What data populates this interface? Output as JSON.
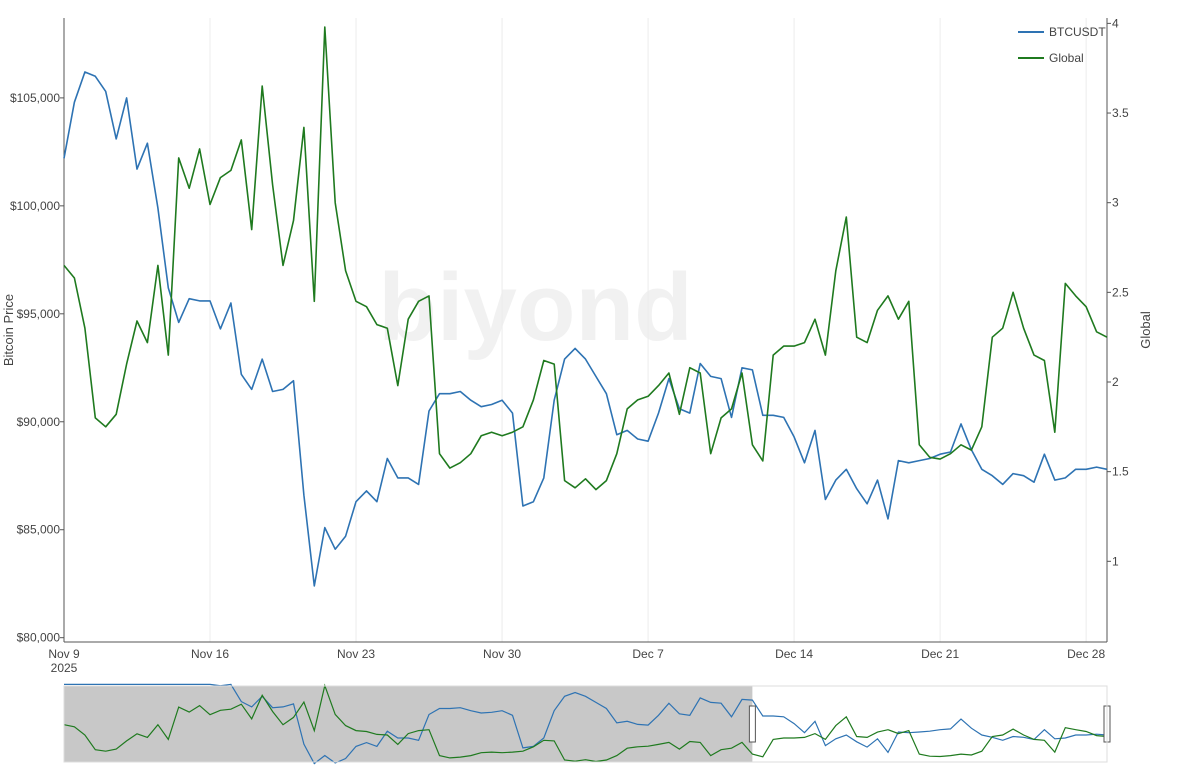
{
  "chart_data": {
    "type": "line",
    "watermark": "biyond",
    "x_axis": {
      "range": [
        "2025-11-09",
        "2025-12-29"
      ],
      "ticks": [
        {
          "date": "2025-11-09",
          "label": "Nov 9",
          "sublabel": "2025"
        },
        {
          "date": "2025-11-16",
          "label": "Nov 16"
        },
        {
          "date": "2025-11-23",
          "label": "Nov 23"
        },
        {
          "date": "2025-11-30",
          "label": "Nov 30"
        },
        {
          "date": "2025-12-07",
          "label": "Dec 7"
        },
        {
          "date": "2025-12-14",
          "label": "Dec 14"
        },
        {
          "date": "2025-12-21",
          "label": "Dec 21"
        },
        {
          "date": "2025-12-28",
          "label": "Dec 28"
        }
      ],
      "grid": true
    },
    "y_axis_left": {
      "title": "Bitcoin Price",
      "range": [
        79800,
        108700
      ],
      "ticks": [
        {
          "value": 80000,
          "label": "$80,000"
        },
        {
          "value": 85000,
          "label": "$85,000"
        },
        {
          "value": 90000,
          "label": "$90,000"
        },
        {
          "value": 95000,
          "label": "$95,000"
        },
        {
          "value": 100000,
          "label": "$100,000"
        },
        {
          "value": 105000,
          "label": "$105,000"
        }
      ]
    },
    "y_axis_right": {
      "title": "Global",
      "range": [
        0.55,
        4.03
      ],
      "ticks": [
        {
          "value": 1,
          "label": "1"
        },
        {
          "value": 1.5,
          "label": "1.5"
        },
        {
          "value": 2,
          "label": "2"
        },
        {
          "value": 2.5,
          "label": "2.5"
        },
        {
          "value": 3,
          "label": "3"
        },
        {
          "value": 3.5,
          "label": "3.5"
        },
        {
          "value": 4,
          "label": "4"
        }
      ]
    },
    "legend": {
      "placement": "top-right"
    },
    "series": [
      {
        "name": "BTCUSDT",
        "axis": "left",
        "color": "#2e73b3",
        "points": [
          [
            "2025-11-09T00:00",
            102200
          ],
          [
            "2025-11-09T12:00",
            104800
          ],
          [
            "2025-11-10T00:00",
            106200
          ],
          [
            "2025-11-10T12:00",
            106000
          ],
          [
            "2025-11-11T00:00",
            105300
          ],
          [
            "2025-11-11T12:00",
            103100
          ],
          [
            "2025-11-12T00:00",
            105000
          ],
          [
            "2025-11-12T12:00",
            101700
          ],
          [
            "2025-11-13T00:00",
            102900
          ],
          [
            "2025-11-13T12:00",
            99900
          ],
          [
            "2025-11-14T00:00",
            96200
          ],
          [
            "2025-11-14T12:00",
            94600
          ],
          [
            "2025-11-15T00:00",
            95700
          ],
          [
            "2025-11-15T12:00",
            95600
          ],
          [
            "2025-11-16T00:00",
            95600
          ],
          [
            "2025-11-16T12:00",
            94300
          ],
          [
            "2025-11-17T00:00",
            95500
          ],
          [
            "2025-11-17T12:00",
            92200
          ],
          [
            "2025-11-18T00:00",
            91500
          ],
          [
            "2025-11-18T12:00",
            92900
          ],
          [
            "2025-11-19T00:00",
            91400
          ],
          [
            "2025-11-19T12:00",
            91500
          ],
          [
            "2025-11-20T00:00",
            91900
          ],
          [
            "2025-11-20T12:00",
            86600
          ],
          [
            "2025-11-21T00:00",
            82400
          ],
          [
            "2025-11-21T12:00",
            85100
          ],
          [
            "2025-11-22T00:00",
            84100
          ],
          [
            "2025-11-22T12:00",
            84700
          ],
          [
            "2025-11-23T00:00",
            86300
          ],
          [
            "2025-11-23T12:00",
            86800
          ],
          [
            "2025-11-24T00:00",
            86300
          ],
          [
            "2025-11-24T12:00",
            88300
          ],
          [
            "2025-11-25T00:00",
            87400
          ],
          [
            "2025-11-25T12:00",
            87400
          ],
          [
            "2025-11-26T00:00",
            87100
          ],
          [
            "2025-11-26T12:00",
            90500
          ],
          [
            "2025-11-27T00:00",
            91300
          ],
          [
            "2025-11-27T12:00",
            91300
          ],
          [
            "2025-11-28T00:00",
            91400
          ],
          [
            "2025-11-28T12:00",
            91000
          ],
          [
            "2025-11-29T00:00",
            90700
          ],
          [
            "2025-11-29T12:00",
            90800
          ],
          [
            "2025-11-30T00:00",
            91000
          ],
          [
            "2025-11-30T12:00",
            90400
          ],
          [
            "2025-12-01T00:00",
            86100
          ],
          [
            "2025-12-01T12:00",
            86300
          ],
          [
            "2025-12-02T00:00",
            87400
          ],
          [
            "2025-12-02T12:00",
            91000
          ],
          [
            "2025-12-03T00:00",
            92900
          ],
          [
            "2025-12-03T12:00",
            93400
          ],
          [
            "2025-12-04T00:00",
            92900
          ],
          [
            "2025-12-04T12:00",
            92100
          ],
          [
            "2025-12-05T00:00",
            91300
          ],
          [
            "2025-12-05T12:00",
            89400
          ],
          [
            "2025-12-06T00:00",
            89600
          ],
          [
            "2025-12-06T12:00",
            89200
          ],
          [
            "2025-12-07T00:00",
            89100
          ],
          [
            "2025-12-07T12:00",
            90400
          ],
          [
            "2025-12-08T00:00",
            92000
          ],
          [
            "2025-12-08T12:00",
            90600
          ],
          [
            "2025-12-09T00:00",
            90400
          ],
          [
            "2025-12-09T12:00",
            92700
          ],
          [
            "2025-12-10T00:00",
            92100
          ],
          [
            "2025-12-10T12:00",
            92000
          ],
          [
            "2025-12-11T00:00",
            90200
          ],
          [
            "2025-12-11T12:00",
            92500
          ],
          [
            "2025-12-12T00:00",
            92400
          ],
          [
            "2025-12-12T12:00",
            90300
          ],
          [
            "2025-12-13T00:00",
            90300
          ],
          [
            "2025-12-13T12:00",
            90200
          ],
          [
            "2025-12-14T00:00",
            89300
          ],
          [
            "2025-12-14T12:00",
            88100
          ],
          [
            "2025-12-15T00:00",
            89600
          ],
          [
            "2025-12-15T12:00",
            86400
          ],
          [
            "2025-12-16T00:00",
            87300
          ],
          [
            "2025-12-16T12:00",
            87800
          ],
          [
            "2025-12-17T00:00",
            86900
          ],
          [
            "2025-12-17T12:00",
            86200
          ],
          [
            "2025-12-18T00:00",
            87300
          ],
          [
            "2025-12-18T12:00",
            85500
          ],
          [
            "2025-12-19T00:00",
            88200
          ],
          [
            "2025-12-19T12:00",
            88100
          ],
          [
            "2025-12-20T00:00",
            88200
          ],
          [
            "2025-12-20T12:00",
            88300
          ],
          [
            "2025-12-21T00:00",
            88500
          ],
          [
            "2025-12-21T12:00",
            88600
          ],
          [
            "2025-12-22T00:00",
            89900
          ],
          [
            "2025-12-22T12:00",
            88700
          ],
          [
            "2025-12-23T00:00",
            87800
          ],
          [
            "2025-12-23T12:00",
            87500
          ],
          [
            "2025-12-24T00:00",
            87100
          ],
          [
            "2025-12-24T12:00",
            87600
          ],
          [
            "2025-12-25T00:00",
            87500
          ],
          [
            "2025-12-25T12:00",
            87200
          ],
          [
            "2025-12-26T00:00",
            88500
          ],
          [
            "2025-12-26T12:00",
            87300
          ],
          [
            "2025-12-27T00:00",
            87400
          ],
          [
            "2025-12-27T12:00",
            87800
          ],
          [
            "2025-12-28T00:00",
            87800
          ],
          [
            "2025-12-28T12:00",
            87900
          ],
          [
            "2025-12-29T00:00",
            87800
          ]
        ]
      },
      {
        "name": "Global",
        "axis": "right",
        "color": "#1f7a1f",
        "points": [
          [
            "2025-11-09T00:00",
            2.65
          ],
          [
            "2025-11-09T12:00",
            2.58
          ],
          [
            "2025-11-10T00:00",
            2.3
          ],
          [
            "2025-11-10T12:00",
            1.8
          ],
          [
            "2025-11-11T00:00",
            1.75
          ],
          [
            "2025-11-11T12:00",
            1.82
          ],
          [
            "2025-11-12T00:00",
            2.1
          ],
          [
            "2025-11-12T12:00",
            2.34
          ],
          [
            "2025-11-13T00:00",
            2.22
          ],
          [
            "2025-11-13T12:00",
            2.65
          ],
          [
            "2025-11-14T00:00",
            2.15
          ],
          [
            "2025-11-14T12:00",
            3.25
          ],
          [
            "2025-11-15T00:00",
            3.08
          ],
          [
            "2025-11-15T12:00",
            3.3
          ],
          [
            "2025-11-16T00:00",
            2.99
          ],
          [
            "2025-11-16T12:00",
            3.14
          ],
          [
            "2025-11-17T00:00",
            3.18
          ],
          [
            "2025-11-17T12:00",
            3.35
          ],
          [
            "2025-11-18T00:00",
            2.85
          ],
          [
            "2025-11-18T12:00",
            3.65
          ],
          [
            "2025-11-19T00:00",
            3.1
          ],
          [
            "2025-11-19T12:00",
            2.65
          ],
          [
            "2025-11-20T00:00",
            2.9
          ],
          [
            "2025-11-20T12:00",
            3.42
          ],
          [
            "2025-11-21T00:00",
            2.45
          ],
          [
            "2025-11-21T12:00",
            3.98
          ],
          [
            "2025-11-22T00:00",
            3.0
          ],
          [
            "2025-11-22T12:00",
            2.62
          ],
          [
            "2025-11-23T00:00",
            2.45
          ],
          [
            "2025-11-23T12:00",
            2.42
          ],
          [
            "2025-11-24T00:00",
            2.32
          ],
          [
            "2025-11-24T12:00",
            2.3
          ],
          [
            "2025-11-25T00:00",
            1.98
          ],
          [
            "2025-11-25T12:00",
            2.35
          ],
          [
            "2025-11-26T00:00",
            2.45
          ],
          [
            "2025-11-26T12:00",
            2.48
          ],
          [
            "2025-11-27T00:00",
            1.6
          ],
          [
            "2025-11-27T12:00",
            1.52
          ],
          [
            "2025-11-28T00:00",
            1.55
          ],
          [
            "2025-11-28T12:00",
            1.6
          ],
          [
            "2025-11-29T00:00",
            1.7
          ],
          [
            "2025-11-29T12:00",
            1.72
          ],
          [
            "2025-11-30T00:00",
            1.7
          ],
          [
            "2025-11-30T12:00",
            1.72
          ],
          [
            "2025-12-01T00:00",
            1.75
          ],
          [
            "2025-12-01T12:00",
            1.9
          ],
          [
            "2025-12-02T00:00",
            2.12
          ],
          [
            "2025-12-02T12:00",
            2.1
          ],
          [
            "2025-12-03T00:00",
            1.45
          ],
          [
            "2025-12-03T12:00",
            1.41
          ],
          [
            "2025-12-04T00:00",
            1.46
          ],
          [
            "2025-12-04T12:00",
            1.4
          ],
          [
            "2025-12-05T00:00",
            1.45
          ],
          [
            "2025-12-05T12:00",
            1.6
          ],
          [
            "2025-12-06T00:00",
            1.85
          ],
          [
            "2025-12-06T12:00",
            1.9
          ],
          [
            "2025-12-07T00:00",
            1.92
          ],
          [
            "2025-12-07T12:00",
            1.98
          ],
          [
            "2025-12-08T00:00",
            2.05
          ],
          [
            "2025-12-08T12:00",
            1.82
          ],
          [
            "2025-12-09T00:00",
            2.08
          ],
          [
            "2025-12-09T12:00",
            2.05
          ],
          [
            "2025-12-10T00:00",
            1.6
          ],
          [
            "2025-12-10T12:00",
            1.8
          ],
          [
            "2025-12-11T00:00",
            1.85
          ],
          [
            "2025-12-11T12:00",
            2.05
          ],
          [
            "2025-12-12T00:00",
            1.65
          ],
          [
            "2025-12-12T12:00",
            1.56
          ],
          [
            "2025-12-13T00:00",
            2.15
          ],
          [
            "2025-12-13T12:00",
            2.2
          ],
          [
            "2025-12-14T00:00",
            2.2
          ],
          [
            "2025-12-14T12:00",
            2.22
          ],
          [
            "2025-12-15T00:00",
            2.35
          ],
          [
            "2025-12-15T12:00",
            2.15
          ],
          [
            "2025-12-16T00:00",
            2.62
          ],
          [
            "2025-12-16T12:00",
            2.92
          ],
          [
            "2025-12-17T00:00",
            2.25
          ],
          [
            "2025-12-17T12:00",
            2.22
          ],
          [
            "2025-12-18T00:00",
            2.4
          ],
          [
            "2025-12-18T12:00",
            2.48
          ],
          [
            "2025-12-19T00:00",
            2.35
          ],
          [
            "2025-12-19T12:00",
            2.45
          ],
          [
            "2025-12-20T00:00",
            1.65
          ],
          [
            "2025-12-20T12:00",
            1.58
          ],
          [
            "2025-12-21T00:00",
            1.57
          ],
          [
            "2025-12-21T12:00",
            1.6
          ],
          [
            "2025-12-22T00:00",
            1.65
          ],
          [
            "2025-12-22T12:00",
            1.62
          ],
          [
            "2025-12-23T00:00",
            1.75
          ],
          [
            "2025-12-23T12:00",
            2.25
          ],
          [
            "2025-12-24T00:00",
            2.3
          ],
          [
            "2025-12-24T12:00",
            2.5
          ],
          [
            "2025-12-25T00:00",
            2.3
          ],
          [
            "2025-12-25T12:00",
            2.15
          ],
          [
            "2025-12-26T00:00",
            2.12
          ],
          [
            "2025-12-26T12:00",
            1.72
          ],
          [
            "2025-12-27T00:00",
            2.55
          ],
          [
            "2025-12-27T12:00",
            2.48
          ],
          [
            "2025-12-28T00:00",
            2.42
          ],
          [
            "2025-12-28T12:00",
            2.28
          ],
          [
            "2025-12-29T00:00",
            2.25
          ]
        ]
      }
    ],
    "navigator": {
      "selected_range": [
        "2025-11-09",
        "2025-12-29"
      ],
      "window_start": "2025-12-12",
      "unselected_shade": "#c8c8c8",
      "negative_color": "#b22222"
    }
  }
}
